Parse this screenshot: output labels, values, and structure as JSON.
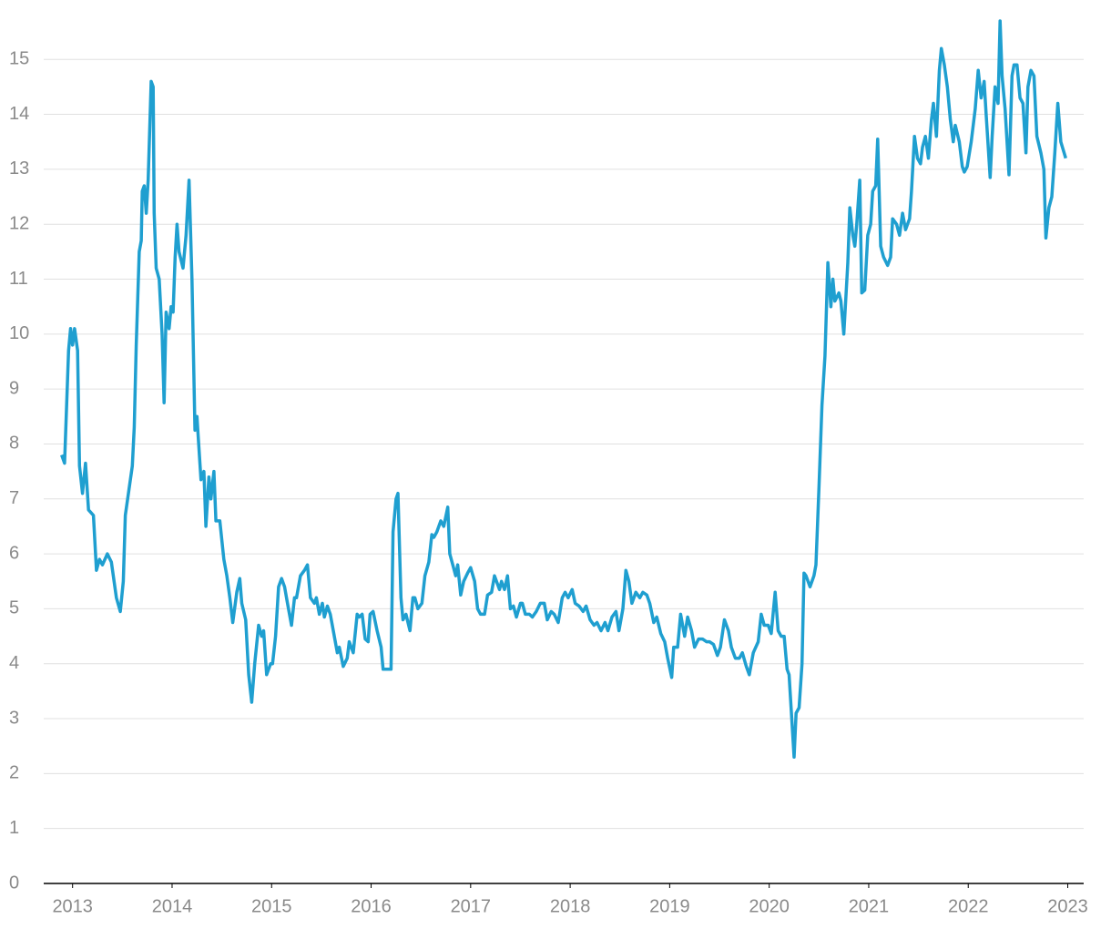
{
  "chart_data": {
    "type": "line",
    "color": "#1f9fd0",
    "grid": true,
    "xlim": [
      2012.71,
      2023.16
    ],
    "xticks": [
      2013,
      2014,
      2015,
      2016,
      2017,
      2018,
      2019,
      2020,
      2021,
      2022,
      2023
    ],
    "ylim": [
      0,
      15.75
    ],
    "yticks": [
      0,
      1,
      2,
      3,
      4,
      5,
      6,
      7,
      8,
      9,
      10,
      11,
      12,
      13,
      14,
      15
    ],
    "x": [
      2012.89,
      2012.92,
      2012.96,
      2012.98,
      2013.0,
      2013.02,
      2013.05,
      2013.07,
      2013.1,
      2013.13,
      2013.16,
      2013.21,
      2013.24,
      2013.27,
      2013.3,
      2013.35,
      2013.39,
      2013.44,
      2013.48,
      2013.51,
      2013.53,
      2013.6,
      2013.62,
      2013.64,
      2013.67,
      2013.69,
      2013.7,
      2013.72,
      2013.74,
      2013.76,
      2013.79,
      2013.81,
      2013.82,
      2013.84,
      2013.87,
      2013.9,
      2013.92,
      2013.94,
      2013.97,
      2013.99,
      2014.01,
      2014.03,
      2014.05,
      2014.07,
      2014.11,
      2014.14,
      2014.17,
      2014.2,
      2014.23,
      2014.25,
      2014.26,
      2014.29,
      2014.32,
      2014.34,
      2014.37,
      2014.39,
      2014.42,
      2014.44,
      2014.48,
      2014.52,
      2014.55,
      2014.58,
      2014.61,
      2014.65,
      2014.68,
      2014.7,
      2014.74,
      2014.77,
      2014.8,
      2014.83,
      2014.87,
      2014.9,
      2014.92,
      2014.95,
      2014.99,
      2015.01,
      2015.04,
      2015.07,
      2015.1,
      2015.13,
      2015.16,
      2015.2,
      2015.23,
      2015.25,
      2015.29,
      2015.33,
      2015.36,
      2015.39,
      2015.43,
      2015.45,
      2015.48,
      2015.51,
      2015.53,
      2015.56,
      2015.59,
      2015.62,
      2015.66,
      2015.68,
      2015.72,
      2015.76,
      2015.78,
      2015.82,
      2015.86,
      2015.88,
      2015.91,
      2015.94,
      2015.97,
      2015.99,
      2016.02,
      2016.06,
      2016.1,
      2016.12,
      2016.16,
      2016.2,
      2016.22,
      2016.25,
      2016.27,
      2016.3,
      2016.32,
      2016.35,
      2016.39,
      2016.42,
      2016.44,
      2016.47,
      2016.51,
      2016.54,
      2016.58,
      2016.61,
      2016.63,
      2016.66,
      2016.7,
      2016.73,
      2016.77,
      2016.79,
      2016.82,
      2016.85,
      2016.87,
      2016.9,
      2016.93,
      2016.97,
      2017.0,
      2017.04,
      2017.07,
      2017.1,
      2017.14,
      2017.17,
      2017.21,
      2017.24,
      2017.29,
      2017.31,
      2017.34,
      2017.37,
      2017.4,
      2017.43,
      2017.46,
      2017.5,
      2017.52,
      2017.55,
      2017.59,
      2017.62,
      2017.66,
      2017.7,
      2017.74,
      2017.77,
      2017.81,
      2017.84,
      2017.88,
      2017.92,
      2017.95,
      2017.98,
      2018.02,
      2018.05,
      2018.09,
      2018.13,
      2018.16,
      2018.2,
      2018.24,
      2018.27,
      2018.31,
      2018.35,
      2018.38,
      2018.42,
      2018.46,
      2018.49,
      2018.53,
      2018.56,
      2018.59,
      2018.62,
      2018.66,
      2018.7,
      2018.73,
      2018.77,
      2018.8,
      2018.84,
      2018.87,
      2018.91,
      2018.95,
      2018.98,
      2019.02,
      2019.04,
      2019.08,
      2019.11,
      2019.15,
      2019.18,
      2019.22,
      2019.25,
      2019.29,
      2019.33,
      2019.37,
      2019.4,
      2019.44,
      2019.48,
      2019.51,
      2019.55,
      2019.59,
      2019.62,
      2019.66,
      2019.7,
      2019.73,
      2019.77,
      2019.8,
      2019.84,
      2019.89,
      2019.92,
      2019.95,
      2019.99,
      2020.02,
      2020.06,
      2020.09,
      2020.12,
      2020.15,
      2020.18,
      2020.2,
      2020.23,
      2020.25,
      2020.27,
      2020.3,
      2020.33,
      2020.35,
      2020.37,
      2020.41,
      2020.45,
      2020.47,
      2020.5,
      2020.53,
      2020.56,
      2020.59,
      2020.62,
      2020.64,
      2020.66,
      2020.7,
      2020.72,
      2020.75,
      2020.79,
      2020.81,
      2020.84,
      2020.86,
      2020.88,
      2020.91,
      2020.93,
      2020.96,
      2020.99,
      2021.02,
      2021.04,
      2021.07,
      2021.09,
      2021.12,
      2021.15,
      2021.19,
      2021.22,
      2021.24,
      2021.28,
      2021.31,
      2021.34,
      2021.37,
      2021.41,
      2021.43,
      2021.46,
      2021.49,
      2021.52,
      2021.54,
      2021.57,
      2021.6,
      2021.63,
      2021.65,
      2021.68,
      2021.71,
      2021.73,
      2021.76,
      2021.79,
      2021.82,
      2021.85,
      2021.87,
      2021.91,
      2021.94,
      2021.96,
      2021.99,
      2022.03,
      2022.07,
      2022.1,
      2022.13,
      2022.16,
      2022.18,
      2022.22,
      2022.24,
      2022.27,
      2022.3,
      2022.32,
      2022.34,
      2022.37,
      2022.41,
      2022.44,
      2022.46,
      2022.49,
      2022.52,
      2022.55,
      2022.58,
      2022.6,
      2022.63,
      2022.66,
      2022.69,
      2022.73,
      2022.76,
      2022.78,
      2022.81,
      2022.84,
      2022.87,
      2022.9,
      2022.93,
      2022.98
    ],
    "values": [
      7.8,
      7.65,
      9.7,
      10.1,
      9.8,
      10.1,
      9.7,
      7.6,
      7.1,
      7.65,
      6.8,
      6.7,
      5.7,
      5.9,
      5.8,
      6.0,
      5.85,
      5.2,
      4.95,
      5.5,
      6.7,
      7.6,
      8.3,
      9.8,
      11.5,
      11.7,
      12.6,
      12.7,
      12.2,
      12.8,
      14.6,
      14.5,
      12.2,
      11.2,
      11.0,
      10.0,
      8.75,
      10.4,
      10.1,
      10.5,
      10.4,
      11.4,
      12.0,
      11.5,
      11.2,
      11.8,
      12.8,
      11.0,
      8.25,
      8.5,
      8.2,
      7.35,
      7.5,
      6.5,
      7.4,
      7.0,
      7.5,
      6.6,
      6.6,
      5.9,
      5.6,
      5.2,
      4.75,
      5.3,
      5.55,
      5.1,
      4.8,
      3.8,
      3.3,
      4.0,
      4.7,
      4.5,
      4.6,
      3.8,
      4.0,
      4.0,
      4.5,
      5.4,
      5.55,
      5.4,
      5.1,
      4.7,
      5.2,
      5.2,
      5.6,
      5.7,
      5.8,
      5.2,
      5.1,
      5.2,
      4.9,
      5.1,
      4.85,
      5.05,
      4.9,
      4.6,
      4.2,
      4.3,
      3.95,
      4.1,
      4.4,
      4.2,
      4.9,
      4.85,
      4.9,
      4.45,
      4.4,
      4.9,
      4.95,
      4.6,
      4.3,
      3.9,
      3.9,
      3.9,
      6.4,
      7.0,
      7.1,
      5.2,
      4.8,
      4.9,
      4.6,
      5.2,
      5.2,
      5.0,
      5.1,
      5.6,
      5.85,
      6.35,
      6.3,
      6.4,
      6.6,
      6.5,
      6.85,
      6.0,
      5.8,
      5.6,
      5.8,
      5.25,
      5.5,
      5.65,
      5.75,
      5.5,
      5.0,
      4.9,
      4.9,
      5.25,
      5.3,
      5.6,
      5.35,
      5.5,
      5.35,
      5.6,
      5.0,
      5.05,
      4.85,
      5.1,
      5.1,
      4.9,
      4.9,
      4.85,
      4.95,
      5.1,
      5.1,
      4.8,
      4.95,
      4.9,
      4.75,
      5.2,
      5.3,
      5.2,
      5.35,
      5.1,
      5.05,
      4.95,
      5.05,
      4.8,
      4.7,
      4.75,
      4.6,
      4.75,
      4.6,
      4.85,
      4.95,
      4.6,
      5.0,
      5.7,
      5.5,
      5.1,
      5.3,
      5.2,
      5.3,
      5.25,
      5.1,
      4.75,
      4.85,
      4.55,
      4.4,
      4.1,
      3.75,
      4.3,
      4.3,
      4.9,
      4.5,
      4.85,
      4.6,
      4.3,
      4.45,
      4.45,
      4.4,
      4.4,
      4.35,
      4.15,
      4.3,
      4.8,
      4.6,
      4.3,
      4.1,
      4.1,
      4.2,
      3.95,
      3.8,
      4.2,
      4.4,
      4.9,
      4.7,
      4.7,
      4.55,
      5.3,
      4.6,
      4.5,
      4.5,
      3.9,
      3.8,
      2.9,
      2.3,
      3.1,
      3.2,
      4.0,
      5.65,
      5.6,
      5.4,
      5.6,
      5.8,
      7.2,
      8.7,
      9.6,
      11.3,
      10.5,
      11.0,
      10.6,
      10.75,
      10.6,
      10.0,
      11.3,
      12.3,
      11.8,
      11.6,
      12.0,
      12.8,
      10.75,
      10.8,
      11.8,
      12.0,
      12.6,
      12.7,
      13.55,
      11.6,
      11.4,
      11.25,
      11.4,
      12.1,
      12.0,
      11.8,
      12.2,
      11.9,
      12.1,
      12.6,
      13.6,
      13.2,
      13.1,
      13.4,
      13.6,
      13.2,
      13.9,
      14.2,
      13.6,
      14.8,
      15.2,
      14.9,
      14.5,
      13.9,
      13.5,
      13.8,
      13.5,
      13.05,
      12.95,
      13.05,
      13.5,
      14.1,
      14.8,
      14.3,
      14.6,
      14.0,
      12.85,
      13.6,
      14.5,
      14.2,
      15.7,
      14.7,
      14.1,
      12.9,
      14.7,
      14.9,
      14.9,
      14.3,
      14.2,
      13.3,
      14.5,
      14.8,
      14.7,
      13.6,
      13.3,
      13.0,
      11.75,
      12.3,
      12.5,
      13.3,
      14.2,
      13.5,
      13.2
    ]
  }
}
